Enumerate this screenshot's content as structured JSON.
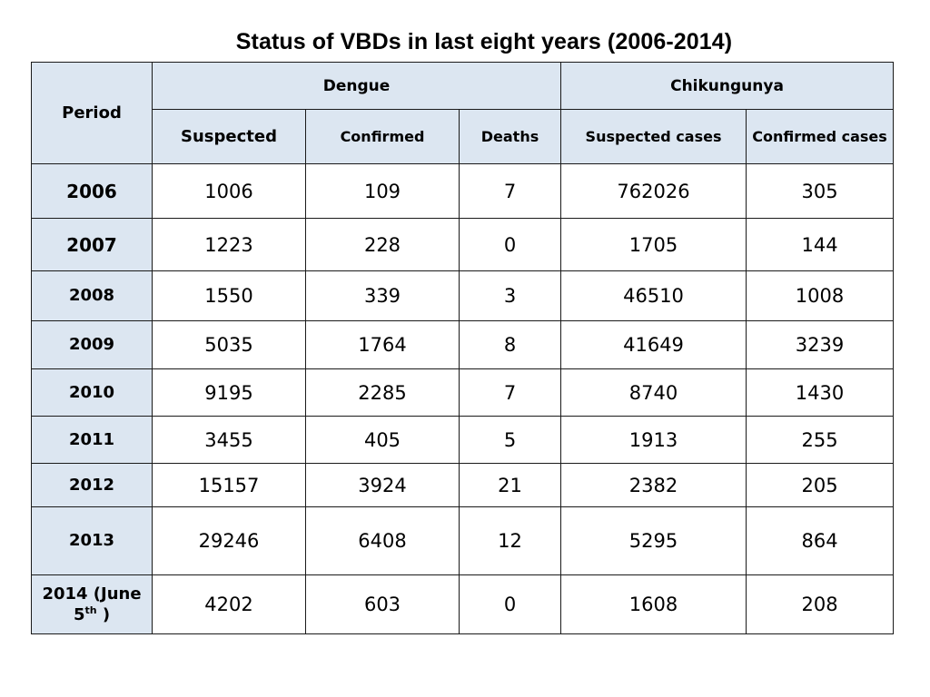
{
  "title": "Status of VBDs in last eight years (2006-2014)",
  "headers": {
    "period": "Period",
    "dengue": "Dengue",
    "chikungunya": "Chikungunya",
    "columns": [
      "Suspected",
      "Confirmed",
      "Deaths",
      "Suspected cases",
      "Confirmed cases"
    ]
  },
  "rows": [
    {
      "period": "2006",
      "values": [
        "1006",
        "109",
        "7",
        "762026",
        "305"
      ]
    },
    {
      "period": "2007",
      "values": [
        "1223",
        "228",
        "0",
        "1705",
        "144"
      ]
    },
    {
      "period": "2008",
      "values": [
        "1550",
        "339",
        "3",
        "46510",
        "1008"
      ]
    },
    {
      "period": "2009",
      "values": [
        "5035",
        "1764",
        "8",
        "41649",
        "3239"
      ]
    },
    {
      "period": "2010",
      "values": [
        "9195",
        "2285",
        "7",
        "8740",
        "1430"
      ]
    },
    {
      "period": "2011",
      "values": [
        "3455",
        "405",
        "5",
        "1913",
        "255"
      ]
    },
    {
      "period": "2012",
      "values": [
        "15157",
        "3924",
        "21",
        "2382",
        "205"
      ]
    },
    {
      "period": "2013",
      "values": [
        "29246",
        "6408",
        "12",
        "5295",
        "864"
      ]
    },
    {
      "period_main": "2014 (June",
      "period_num": "5",
      "period_sup": "th",
      "period_tail": " )",
      "values": [
        "4202",
        "603",
        "0",
        "1608",
        "208"
      ]
    }
  ]
}
